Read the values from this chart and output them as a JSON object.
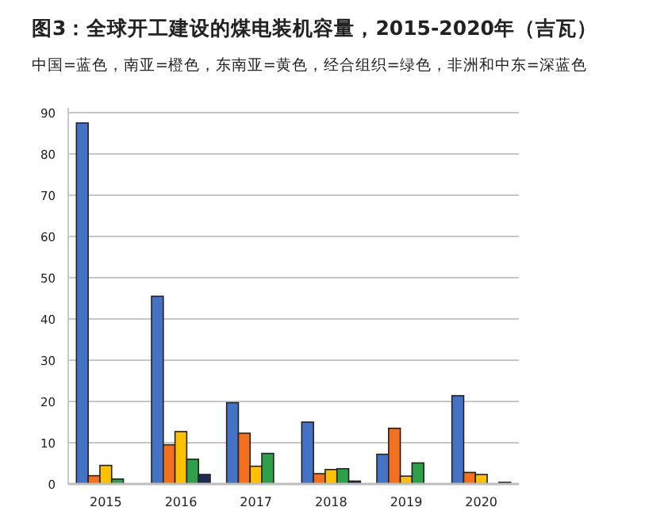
{
  "chart_data": {
    "type": "bar",
    "title": "图3：全球开工建设的煤电装机容量，2015-2020年（吉瓦）",
    "subtitle": "中国=蓝色，南亚=橙色，东南亚=黄色，经合组织=绿色，非洲和中东=深蓝色",
    "categories": [
      "2015",
      "2016",
      "2017",
      "2018",
      "2019",
      "2020"
    ],
    "series": [
      {
        "color": "#4472c4",
        "values": [
          87.5,
          45.5,
          19.7,
          15,
          7.2,
          21.4
        ]
      },
      {
        "color": "#f37021",
        "values": [
          2,
          9.5,
          12.3,
          2.5,
          13.5,
          2.8
        ]
      },
      {
        "color": "#ffc000",
        "values": [
          4.5,
          12.7,
          4.3,
          3.5,
          1.9,
          2.3
        ]
      },
      {
        "color": "#2ea04a",
        "values": [
          1.2,
          6,
          7.4,
          3.7,
          5.1,
          0
        ]
      },
      {
        "color": "#1f2a55",
        "values": [
          0,
          2.3,
          0,
          0.7,
          0,
          0.4
        ]
      }
    ],
    "ylim": [
      0,
      90
    ],
    "yticks": [
      0,
      10,
      20,
      30,
      40,
      50,
      60,
      70,
      80,
      90
    ],
    "grid": "y"
  }
}
